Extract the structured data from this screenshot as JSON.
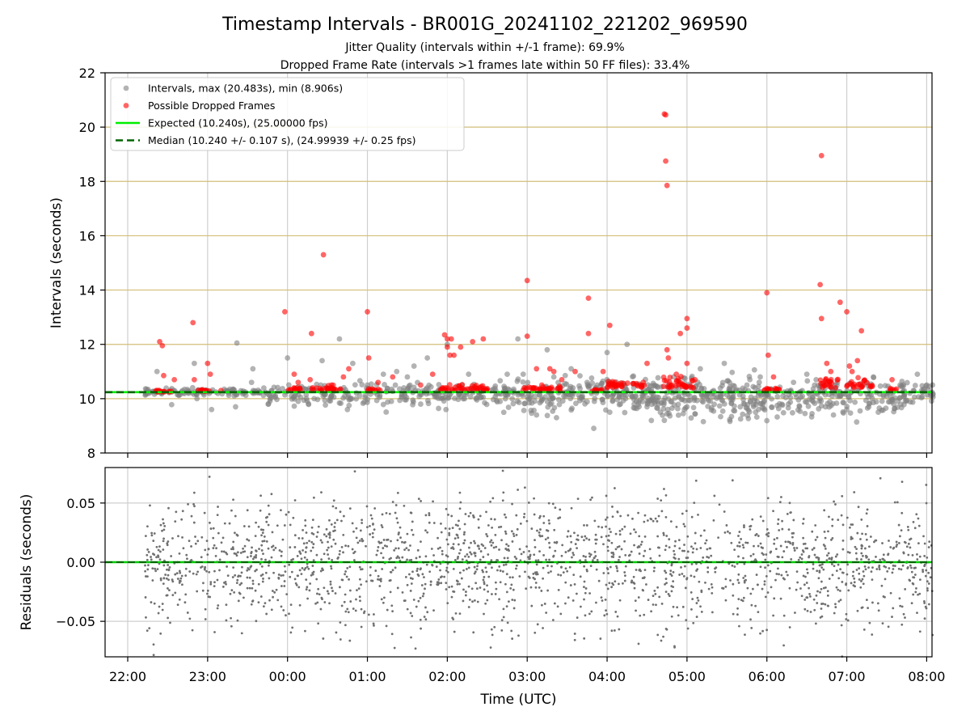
{
  "chart_data": [
    {
      "type": "scatter",
      "title": "Timestamp Intervals - BR001G_20241102_221202_969590",
      "subtitle_lines": [
        "Jitter Quality (intervals within +/-1 frame): 69.9%",
        "Dropped Frame Rate (intervals >1 frames late within 50 FF files): 33.4%"
      ],
      "xlabel": "",
      "ylabel": "Intervals (seconds)",
      "xlim": [
        "21:43",
        "08:04"
      ],
      "ylim": [
        8,
        22
      ],
      "yticks": [
        8,
        10,
        12,
        14,
        16,
        18,
        20,
        22
      ],
      "xticks": [
        "22:00",
        "23:00",
        "00:00",
        "01:00",
        "02:00",
        "03:00",
        "04:00",
        "05:00",
        "06:00",
        "07:00",
        "08:00"
      ],
      "grid": true,
      "horizontal_reference_lines": [
        10,
        12,
        14,
        16,
        18,
        20
      ],
      "legend_position": "top-left",
      "series": [
        {
          "name": "Intervals, max (20.483s), min (8.906s)",
          "color": "#808080",
          "style": "markers",
          "points": [
            [
              "22:14",
              10.24
            ],
            [
              "22:20",
              10.26
            ],
            [
              "22:22",
              11.0
            ],
            [
              "22:33",
              9.78
            ],
            [
              "22:50",
              11.3
            ],
            [
              "22:52",
              10.0
            ],
            [
              "23:03",
              9.6
            ],
            [
              "23:20",
              10.1
            ],
            [
              "23:21",
              9.7
            ],
            [
              "23:22",
              12.05
            ],
            [
              "23:33",
              10.6
            ],
            [
              "23:34",
              11.1
            ],
            [
              "23:48",
              10.3
            ],
            [
              "00:00",
              11.5
            ],
            [
              "00:08",
              9.9
            ],
            [
              "00:20",
              10.0
            ],
            [
              "00:25",
              10.5
            ],
            [
              "00:26",
              11.4
            ],
            [
              "00:39",
              12.2
            ],
            [
              "00:43",
              10.1
            ],
            [
              "00:45",
              9.6
            ],
            [
              "00:49",
              11.3
            ],
            [
              "01:00",
              10.5
            ],
            [
              "01:12",
              10.9
            ],
            [
              "01:18",
              9.9
            ],
            [
              "01:22",
              11.0
            ],
            [
              "01:30",
              10.8
            ],
            [
              "01:35",
              11.2
            ],
            [
              "01:40",
              9.8
            ],
            [
              "01:45",
              11.5
            ],
            [
              "01:59",
              9.6
            ],
            [
              "02:00",
              12.0
            ],
            [
              "02:16",
              10.9
            ],
            [
              "02:28",
              9.85
            ],
            [
              "02:33",
              10.3
            ],
            [
              "02:45",
              10.9
            ],
            [
              "02:53",
              12.2
            ],
            [
              "02:57",
              10.9
            ],
            [
              "03:07",
              9.4
            ],
            [
              "03:15",
              11.8
            ],
            [
              "03:20",
              10.8
            ],
            [
              "03:22",
              9.3
            ],
            [
              "03:25",
              10.4
            ],
            [
              "03:33",
              11.1
            ],
            [
              "03:45",
              10.6
            ],
            [
              "03:50",
              8.906
            ],
            [
              "03:58",
              10.2
            ],
            [
              "04:00",
              11.7
            ],
            [
              "04:02",
              9.5
            ],
            [
              "04:10",
              9.8
            ],
            [
              "04:15",
              12.0
            ],
            [
              "04:20",
              10.4
            ],
            [
              "04:30",
              9.7
            ],
            [
              "04:40",
              9.5
            ],
            [
              "04:43",
              9.2
            ],
            [
              "04:50",
              10.8
            ],
            [
              "04:58",
              9.6
            ],
            [
              "05:00",
              9.7
            ],
            [
              "05:10",
              11.1
            ],
            [
              "05:15",
              10.0
            ],
            [
              "05:20",
              10.3
            ],
            [
              "05:28",
              11.3
            ],
            [
              "05:35",
              10.2
            ],
            [
              "05:40",
              9.7
            ],
            [
              "05:45",
              10.5
            ],
            [
              "05:51",
              10.4
            ],
            [
              "05:55",
              10.8
            ],
            [
              "06:12",
              10.1
            ],
            [
              "06:20",
              10.6
            ],
            [
              "06:30",
              10.9
            ],
            [
              "06:37",
              10.7
            ],
            [
              "06:40",
              10.0
            ],
            [
              "06:44",
              9.7
            ],
            [
              "06:50",
              9.4
            ],
            [
              "06:53",
              10.6
            ],
            [
              "07:00",
              9.6
            ],
            [
              "07:10",
              9.55
            ],
            [
              "07:15",
              10.6
            ],
            [
              "07:20",
              10.8
            ],
            [
              "07:30",
              10.1
            ],
            [
              "07:40",
              10.5
            ],
            [
              "07:50",
              10.3
            ],
            [
              "07:53",
              10.9
            ],
            [
              "08:00",
              10.5
            ],
            [
              "08:03",
              10.2
            ]
          ]
        },
        {
          "name": "Possible Dropped Frames",
          "color": "#ff0000",
          "style": "markers",
          "points": [
            [
              "22:24",
              12.1
            ],
            [
              "22:26",
              11.95
            ],
            [
              "22:27",
              10.85
            ],
            [
              "22:35",
              10.7
            ],
            [
              "22:49",
              12.8
            ],
            [
              "22:50",
              10.7
            ],
            [
              "23:00",
              11.3
            ],
            [
              "23:02",
              10.9
            ],
            [
              "23:10",
              10.3
            ],
            [
              "23:58",
              13.2
            ],
            [
              "00:05",
              10.9
            ],
            [
              "00:08",
              10.6
            ],
            [
              "00:17",
              10.7
            ],
            [
              "00:18",
              12.4
            ],
            [
              "00:27",
              15.3
            ],
            [
              "00:33",
              10.5
            ],
            [
              "00:42",
              10.8
            ],
            [
              "00:46",
              11.1
            ],
            [
              "01:00",
              13.2
            ],
            [
              "01:01",
              11.5
            ],
            [
              "01:08",
              10.6
            ],
            [
              "01:19",
              10.8
            ],
            [
              "01:40",
              10.5
            ],
            [
              "01:49",
              10.9
            ],
            [
              "01:58",
              12.35
            ],
            [
              "02:00",
              12.2
            ],
            [
              "02:00",
              11.9
            ],
            [
              "02:02",
              11.6
            ],
            [
              "02:03",
              12.2
            ],
            [
              "02:05",
              11.6
            ],
            [
              "02:10",
              11.9
            ],
            [
              "02:19",
              12.1
            ],
            [
              "02:27",
              12.2
            ],
            [
              "03:00",
              14.35
            ],
            [
              "03:00",
              12.3
            ],
            [
              "03:07",
              11.1
            ],
            [
              "03:11",
              10.5
            ],
            [
              "03:17",
              11.1
            ],
            [
              "03:20",
              11.0
            ],
            [
              "03:26",
              10.7
            ],
            [
              "03:36",
              11.0
            ],
            [
              "03:46",
              13.7
            ],
            [
              "03:46",
              12.4
            ],
            [
              "03:57",
              11.0
            ],
            [
              "04:02",
              12.7
            ],
            [
              "04:30",
              11.3
            ],
            [
              "04:43",
              20.483
            ],
            [
              "04:44",
              20.45
            ],
            [
              "04:44",
              18.75
            ],
            [
              "04:45",
              17.85
            ],
            [
              "04:45",
              11.8
            ],
            [
              "04:46",
              11.5
            ],
            [
              "04:52",
              10.9
            ],
            [
              "04:55",
              12.4
            ],
            [
              "05:00",
              12.6
            ],
            [
              "05:00",
              12.95
            ],
            [
              "05:00",
              11.3
            ],
            [
              "05:06",
              10.7
            ],
            [
              "06:00",
              13.9
            ],
            [
              "06:01",
              11.6
            ],
            [
              "06:05",
              10.8
            ],
            [
              "06:40",
              14.2
            ],
            [
              "06:41",
              12.95
            ],
            [
              "06:41",
              18.95
            ],
            [
              "06:45",
              11.3
            ],
            [
              "06:48",
              11.0
            ],
            [
              "06:55",
              13.55
            ],
            [
              "07:00",
              13.2
            ],
            [
              "07:02",
              11.2
            ],
            [
              "07:04",
              11.0
            ],
            [
              "07:08",
              11.4
            ],
            [
              "07:11",
              12.5
            ],
            [
              "07:34",
              10.7
            ]
          ]
        },
        {
          "name": "Expected (10.240s), (25.00000 fps)",
          "color": "#00ee00",
          "style": "solid-line",
          "value": 10.24
        },
        {
          "name": "Median (10.240 +/- 0.107 s), (24.99939 +/- 0.25 fps)",
          "color": "#006400",
          "style": "dashed-line",
          "value": 10.24
        }
      ],
      "dense_clusters": {
        "gray": [
          {
            "from": "22:13",
            "to": "23:45",
            "center": 10.24,
            "spread": 0.07,
            "count": 110
          },
          {
            "from": "23:45",
            "to": "02:30",
            "center": 10.18,
            "spread": 0.22,
            "count": 230
          },
          {
            "from": "02:30",
            "to": "04:30",
            "center": 10.15,
            "spread": 0.3,
            "count": 220
          },
          {
            "from": "04:30",
            "to": "06:00",
            "center": 10.05,
            "spread": 0.38,
            "count": 230
          },
          {
            "from": "06:00",
            "to": "07:50",
            "center": 10.1,
            "spread": 0.3,
            "count": 200
          },
          {
            "from": "07:50",
            "to": "08:05",
            "center": 10.24,
            "spread": 0.18,
            "count": 25
          }
        ],
        "red": [
          {
            "from": "22:20",
            "to": "22:35",
            "center": 10.25,
            "spread": 0.03,
            "count": 14
          },
          {
            "from": "22:52",
            "to": "23:05",
            "center": 10.27,
            "spread": 0.04,
            "count": 12
          },
          {
            "from": "23:58",
            "to": "00:10",
            "center": 10.3,
            "spread": 0.12,
            "count": 14
          },
          {
            "from": "00:18",
            "to": "00:40",
            "center": 10.3,
            "spread": 0.12,
            "count": 28
          },
          {
            "from": "00:58",
            "to": "01:10",
            "center": 10.28,
            "spread": 0.06,
            "count": 12
          },
          {
            "from": "01:55",
            "to": "02:30",
            "center": 10.3,
            "spread": 0.12,
            "count": 45
          },
          {
            "from": "02:55",
            "to": "03:25",
            "center": 10.3,
            "spread": 0.12,
            "count": 34
          },
          {
            "from": "03:48",
            "to": "03:56",
            "center": 10.28,
            "spread": 0.06,
            "count": 10
          },
          {
            "from": "04:00",
            "to": "04:28",
            "center": 10.4,
            "spread": 0.2,
            "count": 36
          },
          {
            "from": "04:42",
            "to": "05:05",
            "center": 10.4,
            "spread": 0.25,
            "count": 34
          },
          {
            "from": "05:58",
            "to": "06:10",
            "center": 10.3,
            "spread": 0.08,
            "count": 14
          },
          {
            "from": "06:40",
            "to": "07:20",
            "center": 10.4,
            "spread": 0.25,
            "count": 45
          },
          {
            "from": "07:32",
            "to": "07:38",
            "center": 10.3,
            "spread": 0.05,
            "count": 6
          }
        ]
      }
    },
    {
      "type": "scatter",
      "xlabel": "Time (UTC)",
      "ylabel": "Residuals (seconds)",
      "xlim": [
        "21:43",
        "08:04"
      ],
      "ylim": [
        -0.08,
        0.08
      ],
      "yticks": [
        -0.05,
        0.0,
        0.05
      ],
      "ytick_labels": [
        "−0.05",
        "0.00",
        "0.05"
      ],
      "xticks": [
        "22:00",
        "23:00",
        "00:00",
        "01:00",
        "02:00",
        "03:00",
        "04:00",
        "05:00",
        "06:00",
        "07:00",
        "08:00"
      ],
      "grid": true,
      "zero_line": {
        "value": 0.0,
        "color": "#00cc00",
        "dash_color": "#006400"
      },
      "residual_points": {
        "color": "#707070",
        "from": "22:13",
        "to": "08:05",
        "count": 2000,
        "distribution": "roughly gaussian around 0 with sd about 0.025, clipped at +/-0.08"
      }
    }
  ]
}
